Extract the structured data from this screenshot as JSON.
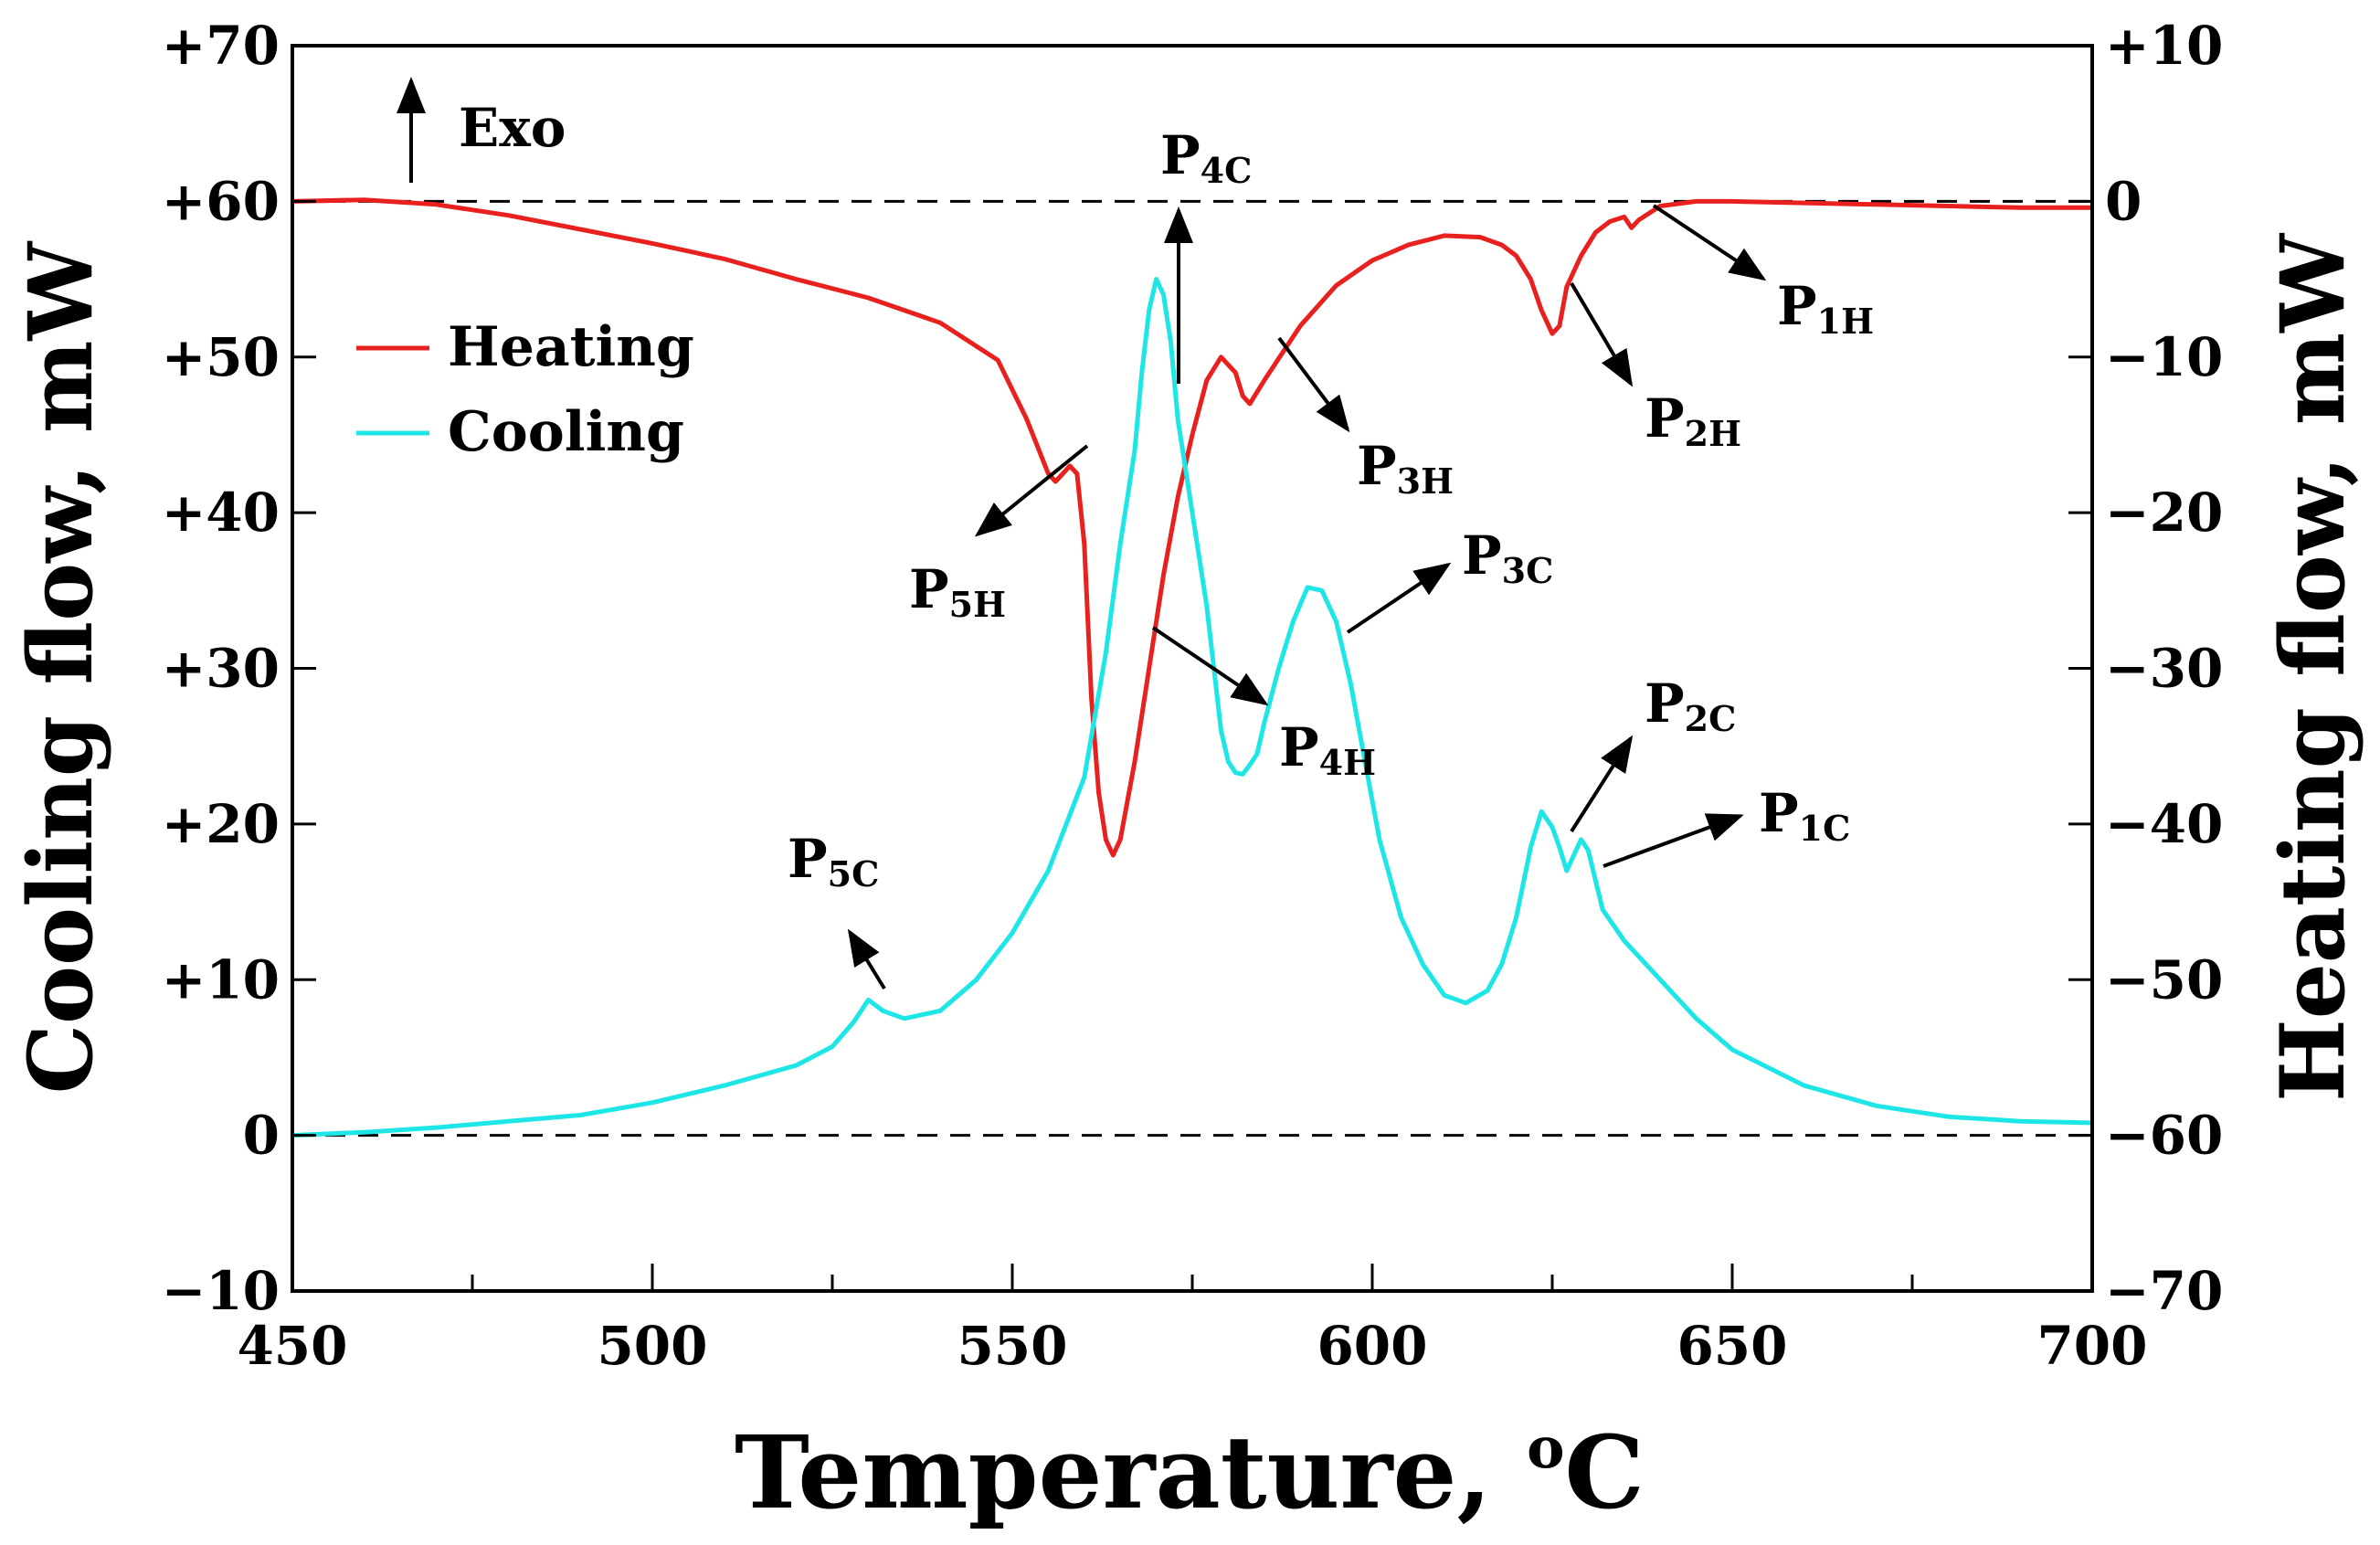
{
  "chart_data": {
    "type": "line",
    "xlabel": "Temperature, ",
    "xlabel_unit": "oC",
    "ylabel_left": "Cooling flow, mW",
    "ylabel_right": "Heating flow, mW",
    "xlim": [
      450,
      700
    ],
    "ylim_left": [
      -10,
      70
    ],
    "ylim_right": [
      -70,
      10
    ],
    "x_ticks": [
      "450",
      "500",
      "550",
      "600",
      "650",
      "700"
    ],
    "y_left_ticks": [
      "−10",
      "0",
      "+10",
      "+20",
      "+30",
      "+40",
      "+50",
      "+60",
      "+70"
    ],
    "y_right_ticks": [
      "−70",
      "−60",
      "−50",
      "−40",
      "−30",
      "−20",
      "−10",
      "0",
      "+10"
    ],
    "exo_label": "Exo",
    "legend": [
      {
        "name": "Heating",
        "color": "#e8211f"
      },
      {
        "name": "Cooling",
        "color": "#1ee6e6"
      }
    ],
    "baselines_left": [
      60,
      0
    ],
    "series": [
      {
        "name": "Heating",
        "axis": "left",
        "color": "#e8211f",
        "points": [
          [
            450,
            60
          ],
          [
            460,
            60.1
          ],
          [
            470,
            59.8
          ],
          [
            480,
            59.1
          ],
          [
            490,
            58.2
          ],
          [
            500,
            57.3
          ],
          [
            510,
            56.3
          ],
          [
            520,
            55
          ],
          [
            530,
            53.8
          ],
          [
            540,
            52.2
          ],
          [
            548,
            49.8
          ],
          [
            552,
            46
          ],
          [
            555,
            42.5
          ],
          [
            556,
            42
          ],
          [
            557,
            42.5
          ],
          [
            558,
            43
          ],
          [
            559,
            42.5
          ],
          [
            560,
            38
          ],
          [
            561,
            28
          ],
          [
            562,
            22
          ],
          [
            563,
            19
          ],
          [
            564,
            18
          ],
          [
            565,
            19
          ],
          [
            567,
            24
          ],
          [
            569,
            30
          ],
          [
            571,
            36
          ],
          [
            573,
            41
          ],
          [
            575,
            45
          ],
          [
            577,
            48.5
          ],
          [
            579,
            50
          ],
          [
            581,
            49
          ],
          [
            582,
            47.5
          ],
          [
            583,
            47
          ],
          [
            585,
            48.5
          ],
          [
            590,
            52
          ],
          [
            595,
            54.6
          ],
          [
            600,
            56.2
          ],
          [
            605,
            57.2
          ],
          [
            610,
            57.8
          ],
          [
            615,
            57.7
          ],
          [
            618,
            57.2
          ],
          [
            620,
            56.5
          ],
          [
            622,
            55
          ],
          [
            623.5,
            53
          ],
          [
            625,
            51.5
          ],
          [
            626,
            52
          ],
          [
            627,
            54.5
          ],
          [
            629,
            56.5
          ],
          [
            631,
            58
          ],
          [
            633,
            58.7
          ],
          [
            635,
            59
          ],
          [
            636,
            58.3
          ],
          [
            637,
            58.8
          ],
          [
            640,
            59.7
          ],
          [
            645,
            60
          ],
          [
            650,
            60
          ],
          [
            660,
            59.9
          ],
          [
            670,
            59.8
          ],
          [
            680,
            59.7
          ],
          [
            690,
            59.6
          ],
          [
            700,
            59.6
          ]
        ]
      },
      {
        "name": "Cooling",
        "axis": "left",
        "color": "#1ee6e6",
        "points": [
          [
            450,
            0
          ],
          [
            460,
            0.2
          ],
          [
            470,
            0.5
          ],
          [
            480,
            0.9
          ],
          [
            490,
            1.3
          ],
          [
            500,
            2.1
          ],
          [
            510,
            3.2
          ],
          [
            520,
            4.5
          ],
          [
            525,
            5.7
          ],
          [
            528,
            7.3
          ],
          [
            530,
            8.7
          ],
          [
            532,
            8
          ],
          [
            535,
            7.5
          ],
          [
            540,
            8
          ],
          [
            545,
            10
          ],
          [
            550,
            13
          ],
          [
            555,
            17
          ],
          [
            560,
            23
          ],
          [
            563,
            31
          ],
          [
            565,
            38
          ],
          [
            567,
            44
          ],
          [
            568,
            49
          ],
          [
            569,
            53
          ],
          [
            570,
            55
          ],
          [
            571,
            54
          ],
          [
            572,
            51
          ],
          [
            573,
            46
          ],
          [
            575,
            40
          ],
          [
            577,
            34
          ],
          [
            579,
            26
          ],
          [
            580,
            24
          ],
          [
            581,
            23.3
          ],
          [
            582,
            23.2
          ],
          [
            583,
            23.8
          ],
          [
            584,
            24.5
          ],
          [
            585,
            26.5
          ],
          [
            587,
            30
          ],
          [
            589,
            33
          ],
          [
            591,
            35.2
          ],
          [
            593,
            35
          ],
          [
            595,
            33
          ],
          [
            597,
            29
          ],
          [
            599,
            24
          ],
          [
            601,
            19
          ],
          [
            604,
            14
          ],
          [
            607,
            11
          ],
          [
            610,
            9
          ],
          [
            613,
            8.5
          ],
          [
            616,
            9.3
          ],
          [
            618,
            11
          ],
          [
            620,
            14
          ],
          [
            622,
            18.5
          ],
          [
            623.5,
            20.8
          ],
          [
            625,
            19.8
          ],
          [
            626,
            18.5
          ],
          [
            627,
            17
          ],
          [
            628,
            18
          ],
          [
            629,
            19
          ],
          [
            630,
            18.3
          ],
          [
            632,
            14.5
          ],
          [
            635,
            12.5
          ],
          [
            640,
            10
          ],
          [
            645,
            7.5
          ],
          [
            650,
            5.5
          ],
          [
            660,
            3.2
          ],
          [
            670,
            1.9
          ],
          [
            680,
            1.2
          ],
          [
            690,
            0.9
          ],
          [
            700,
            0.8
          ]
        ]
      }
    ],
    "annotations": [
      {
        "base": "P",
        "sub": "1H"
      },
      {
        "base": "P",
        "sub": "2H"
      },
      {
        "base": "P",
        "sub": "3H"
      },
      {
        "base": "P",
        "sub": "4H"
      },
      {
        "base": "P",
        "sub": "5H"
      },
      {
        "base": "P",
        "sub": "1C"
      },
      {
        "base": "P",
        "sub": "2C"
      },
      {
        "base": "P",
        "sub": "3C"
      },
      {
        "base": "P",
        "sub": "4C"
      },
      {
        "base": "P",
        "sub": "5C"
      }
    ]
  }
}
